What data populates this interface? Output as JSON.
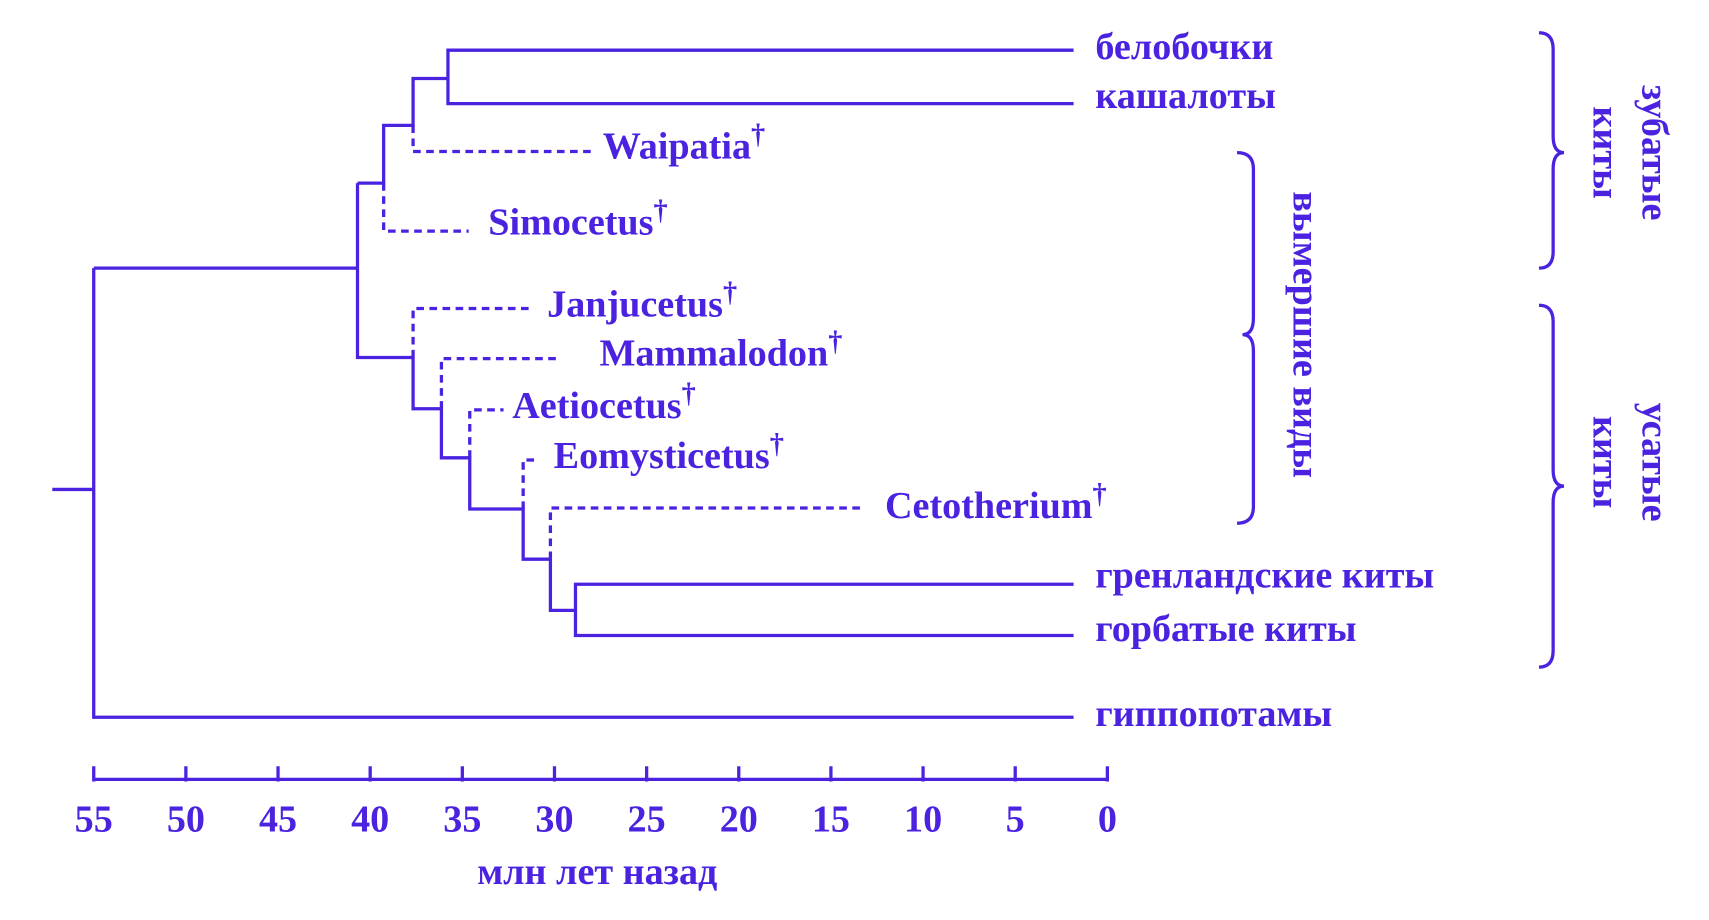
{
  "tree": {
    "leaves": [
      "белобочки",
      "кашалоты",
      "гренландские киты",
      "горбатые киты",
      "гиппопотамы"
    ],
    "extinct": [
      "Waipatia",
      "Simocetus",
      "Janjucetus",
      "Mammalodon",
      "Aetiocetus",
      "Eomysticetus",
      "Cetotherium"
    ],
    "extinct_mark": "†"
  },
  "groups": {
    "extinct": "вымершие виды",
    "toothed": [
      "зубатые",
      "киты"
    ],
    "baleen": [
      "усатые",
      "киты"
    ]
  },
  "axis": {
    "ticks": [
      55,
      50,
      45,
      40,
      35,
      30,
      25,
      20,
      15,
      10,
      5,
      0
    ],
    "label": "млн лет назад"
  }
}
